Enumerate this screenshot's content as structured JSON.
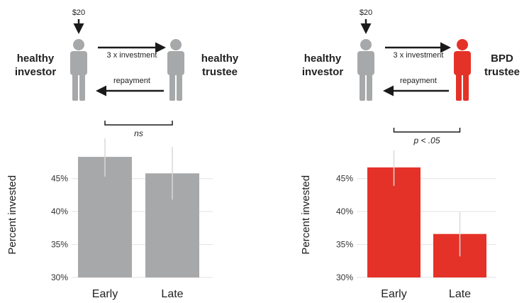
{
  "colors": {
    "healthy": "#a7a8aa",
    "bpd": "#e53228",
    "grid": "#e2e2e2",
    "error": "#d8d8d8",
    "arrow": "#1a1a1a"
  },
  "panels": [
    {
      "investor_label": [
        "healthy",
        "investor"
      ],
      "trustee_label": [
        "healthy",
        "trustee"
      ],
      "amount": "$20",
      "forward_label": "3 x investment",
      "back_label": "repayment",
      "trustee_color": "#a7a8aa",
      "significance": "ns"
    },
    {
      "investor_label": [
        "healthy",
        "investor"
      ],
      "trustee_label": [
        "BPD",
        "trustee"
      ],
      "amount": "$20",
      "forward_label": "3 x investment",
      "back_label": "repayment",
      "trustee_color": "#e53228",
      "significance": "p < .05"
    }
  ],
  "chart_data": [
    {
      "type": "bar",
      "categories": [
        "Early",
        "Late"
      ],
      "values": [
        48.3,
        45.8
      ],
      "error_high": [
        51.1,
        49.8
      ],
      "error_low": [
        45.3,
        41.8
      ],
      "ylabel": "Percent invested",
      "ylim": [
        30,
        51
      ],
      "yticks": [
        30,
        35,
        40,
        45
      ],
      "ytick_labels": [
        "30%",
        "35%",
        "40%",
        "45%"
      ],
      "bar_color": "#a7a8aa",
      "grid": true,
      "significance": "ns"
    },
    {
      "type": "bar",
      "categories": [
        "Early",
        "Late"
      ],
      "values": [
        46.7,
        36.6
      ],
      "error_high": [
        49.3,
        39.9
      ],
      "error_low": [
        43.9,
        33.2
      ],
      "ylabel": "Percent invested",
      "ylim": [
        30,
        51
      ],
      "yticks": [
        30,
        35,
        40,
        45
      ],
      "ytick_labels": [
        "30%",
        "35%",
        "40%",
        "45%"
      ],
      "bar_color": "#e53228",
      "grid": true,
      "significance": "p < .05"
    }
  ]
}
